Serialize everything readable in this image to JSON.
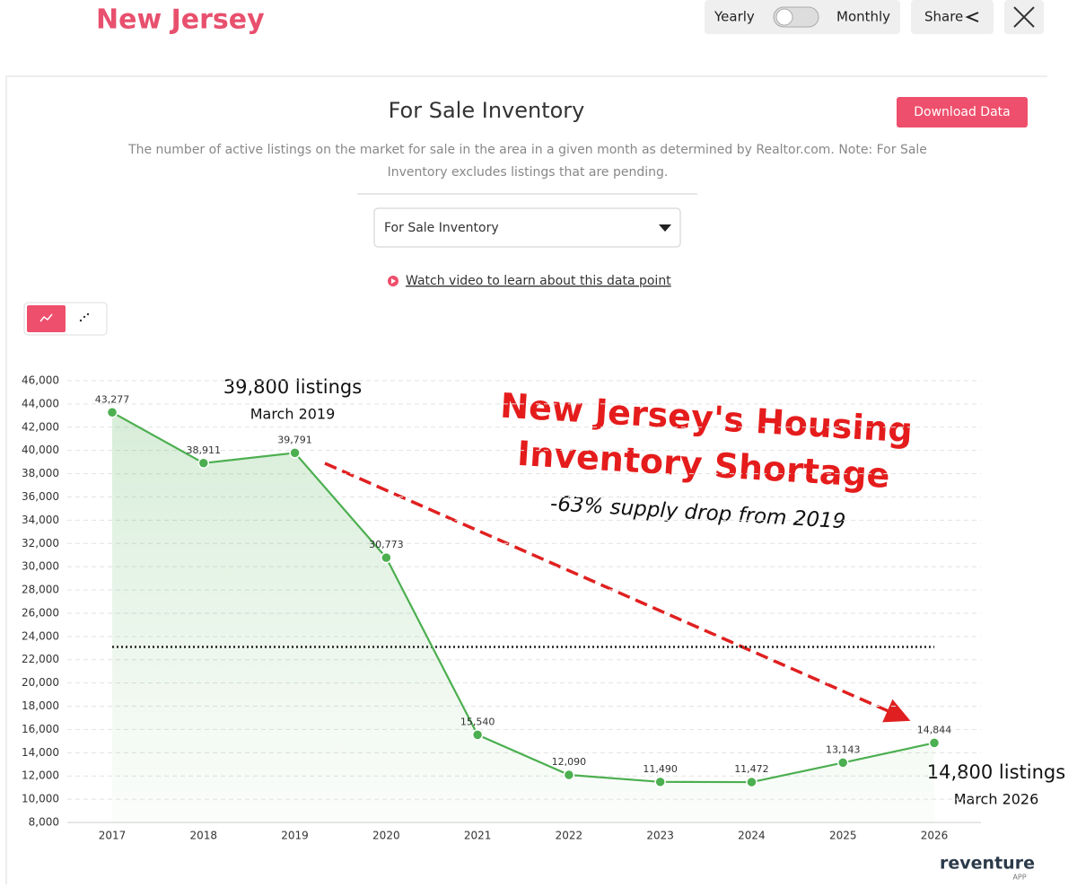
{
  "header": {
    "title": "New Jersey",
    "toggle_left": "Yearly",
    "toggle_right": "Monthly",
    "share": "Share"
  },
  "panel": {
    "title": "For Sale Inventory",
    "button": "Download Data",
    "description": [
      "The number of active listings on the market for sale in the area in a given month as determined by Realtor.com. Note: For Sale",
      "Inventory excludes listings that are pending."
    ],
    "dropdown": "For Sale Inventory",
    "video_link": "Watch video to learn about this data point"
  },
  "chart_data": {
    "type": "line",
    "categories": [
      "2017",
      "2018",
      "2019",
      "2020",
      "2021",
      "2022",
      "2023",
      "2024",
      "2025",
      "2026"
    ],
    "values": [
      43277,
      38911,
      39791,
      30773,
      15540,
      12090,
      11490,
      11472,
      13143,
      14844
    ],
    "value_labels": [
      "43,277",
      "38,911",
      "39,791",
      "30,773",
      "15,540",
      "12,090",
      "11,490",
      "11,472",
      "13,143",
      "14,844"
    ],
    "color": "#4caf50",
    "reference_line": 23100,
    "ylim": [
      8000,
      46000
    ],
    "yticks": [
      {
        "value": 8000,
        "label": "8,000"
      },
      {
        "value": 10000,
        "label": "10,000"
      },
      {
        "value": 12000,
        "label": "12,000"
      },
      {
        "value": 14000,
        "label": "14,000"
      },
      {
        "value": 16000,
        "label": "16,000"
      },
      {
        "value": 18000,
        "label": "18,000"
      },
      {
        "value": 20000,
        "label": "20,000"
      },
      {
        "value": 22000,
        "label": "22,000"
      },
      {
        "value": 24000,
        "label": "24,000"
      },
      {
        "value": 26000,
        "label": "26,000"
      },
      {
        "value": 28000,
        "label": "28,000"
      },
      {
        "value": 30000,
        "label": "30,000"
      },
      {
        "value": 32000,
        "label": "32,000"
      },
      {
        "value": 34000,
        "label": "34,000"
      },
      {
        "value": 36000,
        "label": "36,000"
      },
      {
        "value": 38000,
        "label": "38,000"
      },
      {
        "value": 40000,
        "label": "40,000"
      },
      {
        "value": 42000,
        "label": "42,000"
      },
      {
        "value": 44000,
        "label": "44,000"
      },
      {
        "value": 46000,
        "label": "46,000"
      }
    ],
    "grid": true,
    "annotations": {
      "start_value": "39,800 listings",
      "start_date": "March 2019",
      "headline": [
        "New Jersey's Housing",
        "Inventory Shortage"
      ],
      "subheadline": "-63% supply drop from 2019",
      "end_value": "14,800 listings",
      "end_date": "March 2026"
    }
  },
  "brand": {
    "name": "reventure",
    "tag": "APP"
  }
}
